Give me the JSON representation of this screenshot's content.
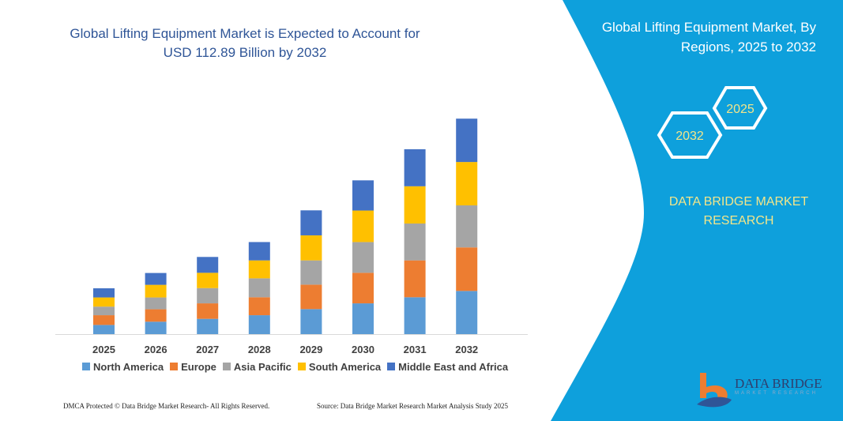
{
  "title": "Global Lifting Equipment Market is Expected to Account for USD 112.89 Billion by 2032",
  "side_panel": {
    "title": "Global Lifting Equipment Market, By Regions, 2025 to 2032",
    "hex_labels": [
      "2032",
      "2025"
    ],
    "brand": "DATA BRIDGE MARKET RESEARCH",
    "logo_text": "DATA BRIDGE",
    "logo_subtext": "MARKET RESEARCH",
    "color": "#0ea0dc"
  },
  "footer": {
    "left": "DMCA Protected © Data Bridge Market Research- All Rights Reserved.",
    "right": "Source: Data Bridge Market Research Market Analysis Study 2025"
  },
  "chart_data": {
    "type": "bar",
    "stacked": true,
    "title": "",
    "xlabel": "",
    "ylabel": "",
    "categories": [
      "2025",
      "2026",
      "2027",
      "2028",
      "2029",
      "2030",
      "2031",
      "2032"
    ],
    "ylim": [
      0,
      112.89
    ],
    "grid": false,
    "legend": "bottom",
    "series": [
      {
        "name": "North America",
        "color": "#5b9bd5",
        "values": [
          4.8,
          6.5,
          8.0,
          9.9,
          13.1,
          16.1,
          19.3,
          22.6
        ]
      },
      {
        "name": "Europe",
        "color": "#ed7d31",
        "values": [
          5.1,
          6.5,
          8.1,
          9.4,
          12.8,
          16.0,
          19.3,
          22.8
        ]
      },
      {
        "name": "Asia Pacific",
        "color": "#a5a5a5",
        "values": [
          4.5,
          6.2,
          8.0,
          9.9,
          12.7,
          16.1,
          19.3,
          22.0
        ]
      },
      {
        "name": "South America",
        "color": "#ffc000",
        "values": [
          4.8,
          6.6,
          8.0,
          9.4,
          13.1,
          16.5,
          19.5,
          22.7
        ]
      },
      {
        "name": "Middle East and Africa",
        "color": "#4472c4",
        "values": [
          4.8,
          6.2,
          8.3,
          9.6,
          13.1,
          15.8,
          19.4,
          22.7
        ]
      }
    ]
  }
}
